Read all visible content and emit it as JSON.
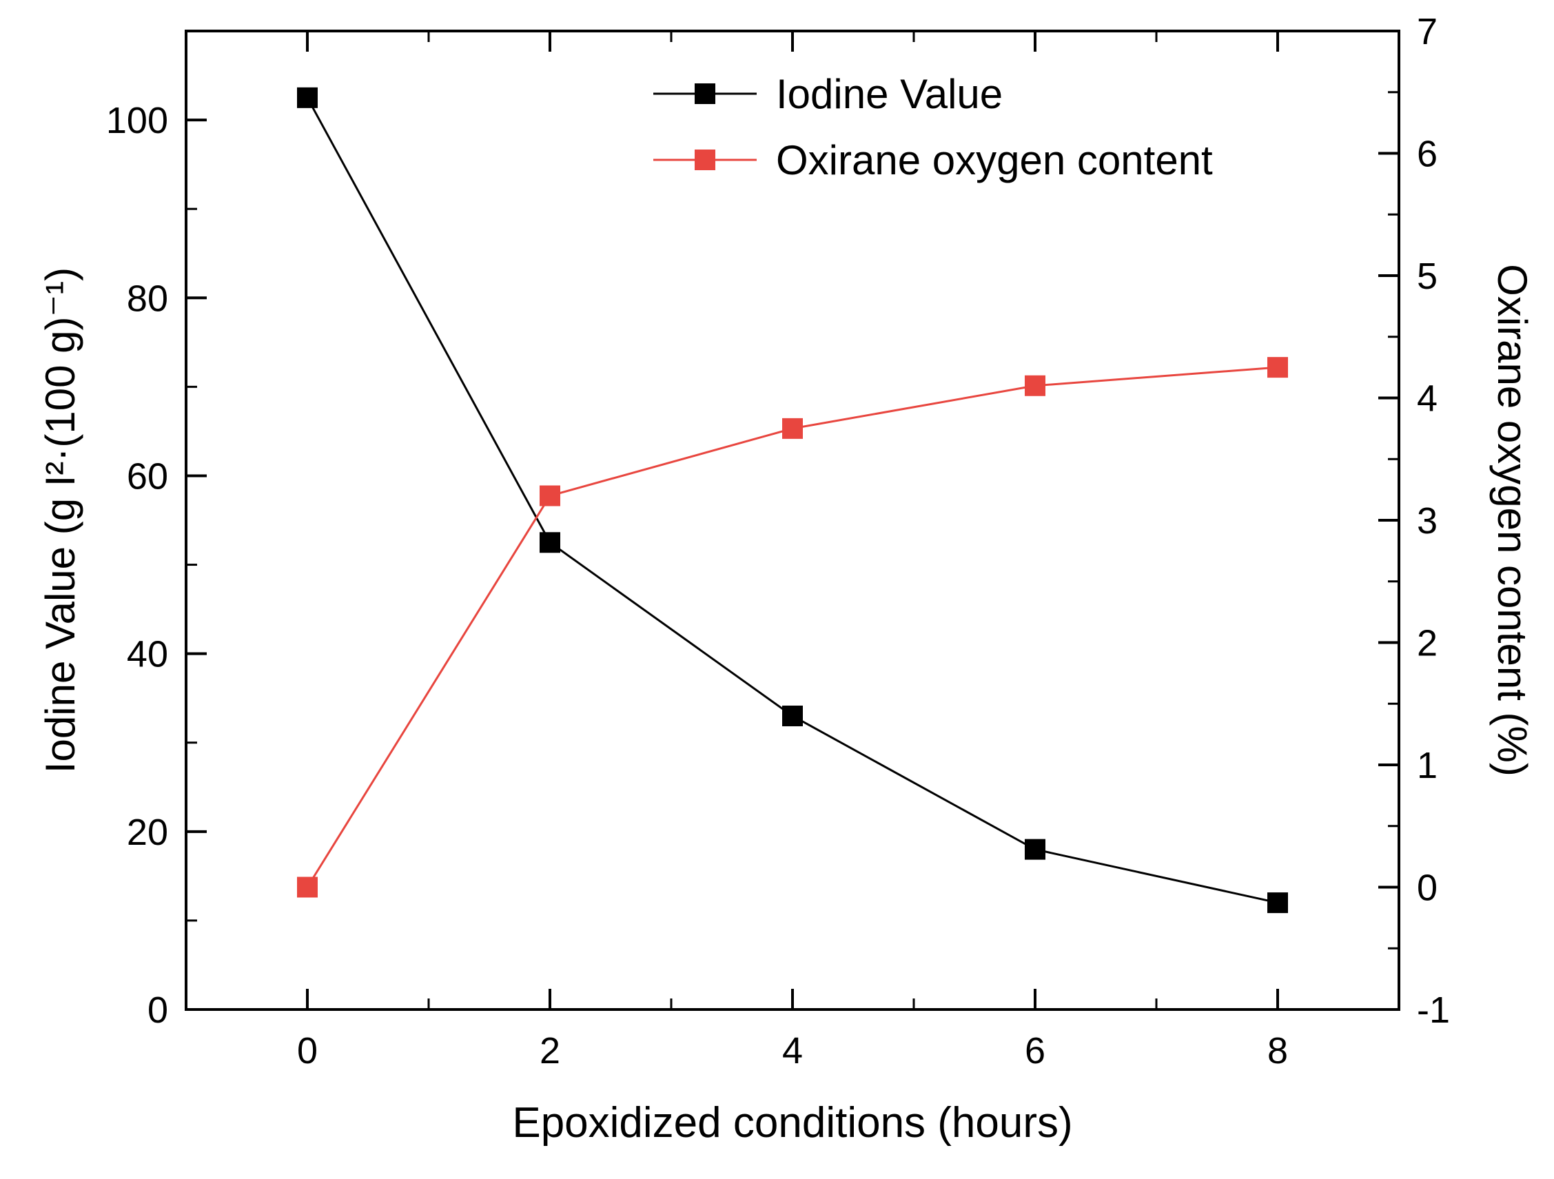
{
  "chart_data": {
    "type": "line",
    "title": "",
    "xlabel": "Epoxidized conditions (hours)",
    "ylabel_left": "Iodine Value (g I²·(100 g)⁻¹)",
    "ylabel_right": "Oxirane oxygen content (%)",
    "x_axis": {
      "min": -1,
      "max": 9,
      "major_ticks": [
        0,
        2,
        4,
        6,
        8
      ],
      "minor_step": 1
    },
    "y_left": {
      "min": 0,
      "max": 110,
      "major_ticks": [
        0,
        20,
        40,
        60,
        80,
        100
      ],
      "minor_step": 10
    },
    "y_right": {
      "min": -1,
      "max": 7,
      "major_ticks": [
        -1,
        0,
        1,
        2,
        3,
        4,
        5,
        6,
        7
      ],
      "minor_step": 0.5
    },
    "x": [
      0,
      2,
      4,
      6,
      8
    ],
    "series": [
      {
        "name": "Iodine Value",
        "axis": "left",
        "color": "#000000",
        "marker": "square",
        "values": [
          102.5,
          52.5,
          33,
          18,
          12
        ]
      },
      {
        "name": "Oxirane oxygen content",
        "axis": "right",
        "color": "#e8463f",
        "marker": "square",
        "values": [
          0.0,
          3.2,
          3.75,
          4.1,
          4.25
        ]
      }
    ],
    "legend": {
      "position": "top-center"
    },
    "grid": false,
    "frame_color": "#000000",
    "background_color": "#ffffff"
  }
}
